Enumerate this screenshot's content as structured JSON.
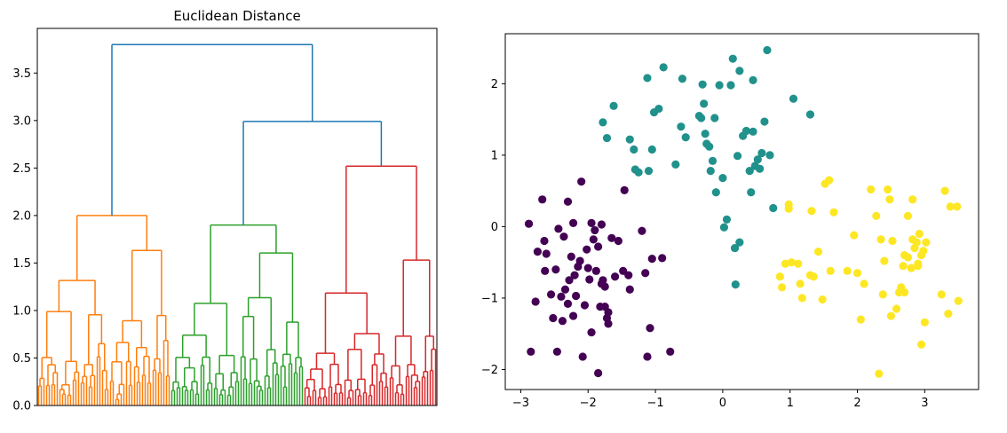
{
  "colors": {
    "cluster_orange": "#ff7f0e",
    "cluster_green": "#2ca02c",
    "cluster_red": "#d62728",
    "link_blue": "#1f77b4",
    "scatter_purple": "#440154",
    "scatter_teal": "#21918c",
    "scatter_yellow": "#fde725"
  },
  "chart_data": [
    {
      "type": "dendrogram",
      "title": "Euclidean Distance",
      "ylabel": "",
      "ylim": [
        0,
        3.97
      ],
      "yticks": [
        0.0,
        0.5,
        1.0,
        1.5,
        2.0,
        2.5,
        3.0,
        3.5
      ],
      "ytick_labels": [
        "0.0",
        "0.5",
        "1.0",
        "1.5",
        "2.0",
        "2.5",
        "3.0",
        "3.5"
      ],
      "x_ticks_visible": false,
      "leaf_counts": {
        "orange": 50,
        "green": 50,
        "red": 50
      },
      "merges": [
        {
          "name": "root",
          "height": 3.8,
          "children": [
            "orange",
            "green+red"
          ],
          "color": "link_blue"
        },
        {
          "name": "green+red",
          "height": 2.99,
          "children": [
            "green",
            "red"
          ],
          "color": "link_blue"
        },
        {
          "name": "orange",
          "height": 2.0,
          "color": "cluster_orange"
        },
        {
          "name": "green",
          "height": 1.9,
          "color": "cluster_green"
        },
        {
          "name": "red",
          "height": 2.52,
          "color": "cluster_red"
        }
      ]
    },
    {
      "type": "scatter",
      "title": "",
      "xlabel": "",
      "ylabel": "",
      "xlim": [
        -3.23,
        3.8
      ],
      "ylim": [
        -2.28,
        2.7
      ],
      "xticks": [
        -3,
        -2,
        -1,
        0,
        1,
        2,
        3
      ],
      "xtick_labels": [
        "−3",
        "−2",
        "−1",
        "0",
        "1",
        "2",
        "3"
      ],
      "yticks": [
        -2,
        -1,
        0,
        1,
        2
      ],
      "ytick_labels": [
        "−2",
        "−1",
        "0",
        "1",
        "2"
      ],
      "series": [
        {
          "color": "scatter_purple",
          "points": [
            [
              -2.88,
              0.04
            ],
            [
              -2.78,
              -1.05
            ],
            [
              -2.85,
              -1.75
            ],
            [
              -2.75,
              -0.35
            ],
            [
              -2.68,
              0.38
            ],
            [
              -2.65,
              -0.2
            ],
            [
              -2.64,
              -0.62
            ],
            [
              -2.62,
              -0.38
            ],
            [
              -2.52,
              -1.28
            ],
            [
              -2.48,
              -0.6
            ],
            [
              -2.46,
              -1.75
            ],
            [
              -2.44,
              -0.03
            ],
            [
              -2.4,
              -0.98
            ],
            [
              -2.38,
              -1.32
            ],
            [
              -2.36,
              -0.14
            ],
            [
              -2.34,
              -0.88
            ],
            [
              -2.3,
              -1.08
            ],
            [
              -2.28,
              -0.75
            ],
            [
              -2.25,
              -0.42
            ],
            [
              -2.22,
              0.05
            ],
            [
              -2.2,
              -0.68
            ],
            [
              -2.18,
              -0.97
            ],
            [
              -2.15,
              -0.56
            ],
            [
              -2.12,
              -0.48
            ],
            [
              -2.08,
              -1.82
            ],
            [
              -2.1,
              0.63
            ],
            [
              -2.05,
              -1.1
            ],
            [
              -2.02,
              -0.32
            ],
            [
              -1.98,
              -0.74
            ],
            [
              -1.95,
              -1.48
            ],
            [
              -1.92,
              -0.18
            ],
            [
              -1.9,
              -0.05
            ],
            [
              -1.88,
              -0.62
            ],
            [
              -1.85,
              -2.05
            ],
            [
              -1.82,
              -1.12
            ],
            [
              -1.8,
              -0.8
            ],
            [
              -1.78,
              -0.75
            ],
            [
              -1.75,
              -0.84
            ],
            [
              -1.72,
              -1.28
            ],
            [
              -1.7,
              -1.36
            ],
            [
              -1.65,
              -0.16
            ],
            [
              -1.55,
              -0.2
            ],
            [
              -1.48,
              -0.62
            ],
            [
              -1.46,
              0.51
            ],
            [
              -1.4,
              -0.68
            ],
            [
              -1.38,
              -0.88
            ],
            [
              -1.2,
              -0.06
            ],
            [
              -1.12,
              -1.82
            ],
            [
              -1.08,
              -1.42
            ],
            [
              -1.05,
              -0.45
            ],
            [
              -0.9,
              -0.44
            ],
            [
              -0.78,
              -1.75
            ],
            [
              -1.7,
              -1.2
            ],
            [
              -2.3,
              0.35
            ],
            [
              -2.22,
              -1.25
            ],
            [
              -1.85,
              -0.28
            ],
            [
              -1.6,
              -0.7
            ],
            [
              -1.95,
              0.05
            ],
            [
              -2.55,
              -0.95
            ],
            [
              -1.8,
              0.03
            ],
            [
              -1.15,
              -0.65
            ],
            [
              -2.0,
              -0.58
            ],
            [
              -1.75,
              -1.12
            ]
          ]
        },
        {
          "color": "scatter_teal",
          "points": [
            [
              -1.78,
              1.46
            ],
            [
              -1.72,
              1.24
            ],
            [
              -1.62,
              1.69
            ],
            [
              -1.38,
              1.22
            ],
            [
              -1.32,
              1.08
            ],
            [
              -1.3,
              0.8
            ],
            [
              -1.25,
              0.76
            ],
            [
              -1.12,
              2.08
            ],
            [
              -1.1,
              0.78
            ],
            [
              -1.05,
              1.08
            ],
            [
              -1.02,
              1.6
            ],
            [
              -0.95,
              1.65
            ],
            [
              -0.88,
              2.23
            ],
            [
              -0.7,
              0.87
            ],
            [
              -0.62,
              1.4
            ],
            [
              -0.6,
              2.07
            ],
            [
              -0.35,
              1.55
            ],
            [
              -0.32,
              1.52
            ],
            [
              -0.3,
              1.99
            ],
            [
              -0.28,
              1.72
            ],
            [
              -0.26,
              1.3
            ],
            [
              -0.24,
              1.16
            ],
            [
              -0.2,
              1.12
            ],
            [
              -0.18,
              0.78
            ],
            [
              -0.15,
              0.92
            ],
            [
              -0.12,
              1.52
            ],
            [
              -0.1,
              0.48
            ],
            [
              -0.05,
              1.98
            ],
            [
              0.0,
              0.68
            ],
            [
              0.02,
              -0.01
            ],
            [
              0.06,
              0.1
            ],
            [
              0.12,
              1.98
            ],
            [
              0.15,
              2.35
            ],
            [
              0.18,
              -0.3
            ],
            [
              0.22,
              0.99
            ],
            [
              0.25,
              -0.22
            ],
            [
              0.25,
              2.18
            ],
            [
              0.3,
              1.27
            ],
            [
              0.35,
              1.34
            ],
            [
              0.4,
              0.78
            ],
            [
              0.42,
              0.48
            ],
            [
              0.45,
              2.05
            ],
            [
              0.48,
              0.85
            ],
            [
              0.52,
              0.94
            ],
            [
              0.55,
              0.81
            ],
            [
              0.58,
              1.03
            ],
            [
              0.62,
              1.47
            ],
            [
              0.66,
              2.47
            ],
            [
              0.7,
              1.0
            ],
            [
              0.75,
              0.26
            ],
            [
              1.05,
              1.79
            ],
            [
              1.3,
              1.57
            ],
            [
              0.19,
              -0.81
            ],
            [
              0.45,
              1.33
            ],
            [
              -0.55,
              1.25
            ]
          ]
        },
        {
          "color": "scatter_yellow",
          "points": [
            [
              0.85,
              -0.7
            ],
            [
              0.88,
              -0.85
            ],
            [
              0.93,
              -0.52
            ],
            [
              0.98,
              0.25
            ],
            [
              0.98,
              0.31
            ],
            [
              1.02,
              -0.5
            ],
            [
              1.12,
              -0.52
            ],
            [
              1.15,
              -0.8
            ],
            [
              1.18,
              -1.0
            ],
            [
              1.3,
              -0.68
            ],
            [
              1.32,
              0.22
            ],
            [
              1.35,
              -0.7
            ],
            [
              1.42,
              -0.35
            ],
            [
              1.48,
              -1.02
            ],
            [
              1.52,
              0.6
            ],
            [
              1.58,
              0.65
            ],
            [
              1.6,
              -0.62
            ],
            [
              1.65,
              0.2
            ],
            [
              1.85,
              -0.62
            ],
            [
              1.95,
              -0.12
            ],
            [
              2.0,
              -0.65
            ],
            [
              2.05,
              -1.3
            ],
            [
              2.1,
              -0.8
            ],
            [
              2.2,
              0.52
            ],
            [
              2.28,
              0.15
            ],
            [
              2.32,
              -2.06
            ],
            [
              2.35,
              -0.18
            ],
            [
              2.38,
              -0.95
            ],
            [
              2.4,
              -0.48
            ],
            [
              2.45,
              0.52
            ],
            [
              2.48,
              0.38
            ],
            [
              2.5,
              -1.25
            ],
            [
              2.52,
              -0.2
            ],
            [
              2.58,
              -1.15
            ],
            [
              2.62,
              -0.92
            ],
            [
              2.68,
              -0.55
            ],
            [
              2.7,
              -0.4
            ],
            [
              2.75,
              0.15
            ],
            [
              2.8,
              -0.58
            ],
            [
              2.82,
              0.38
            ],
            [
              2.85,
              -0.3
            ],
            [
              2.88,
              -0.22
            ],
            [
              2.9,
              -0.52
            ],
            [
              2.92,
              -0.1
            ],
            [
              2.95,
              -1.65
            ],
            [
              2.98,
              -0.34
            ],
            [
              3.0,
              -1.34
            ],
            [
              3.02,
              -0.22
            ],
            [
              3.25,
              -0.95
            ],
            [
              3.3,
              0.5
            ],
            [
              3.35,
              -1.22
            ],
            [
              3.38,
              0.28
            ],
            [
              3.48,
              0.28
            ],
            [
              3.5,
              -1.04
            ],
            [
              2.7,
              -0.92
            ],
            [
              2.75,
              -0.43
            ],
            [
              2.95,
              -0.4
            ],
            [
              2.82,
              -0.18
            ],
            [
              2.9,
              -0.55
            ],
            [
              2.65,
              -0.85
            ]
          ]
        }
      ]
    }
  ]
}
